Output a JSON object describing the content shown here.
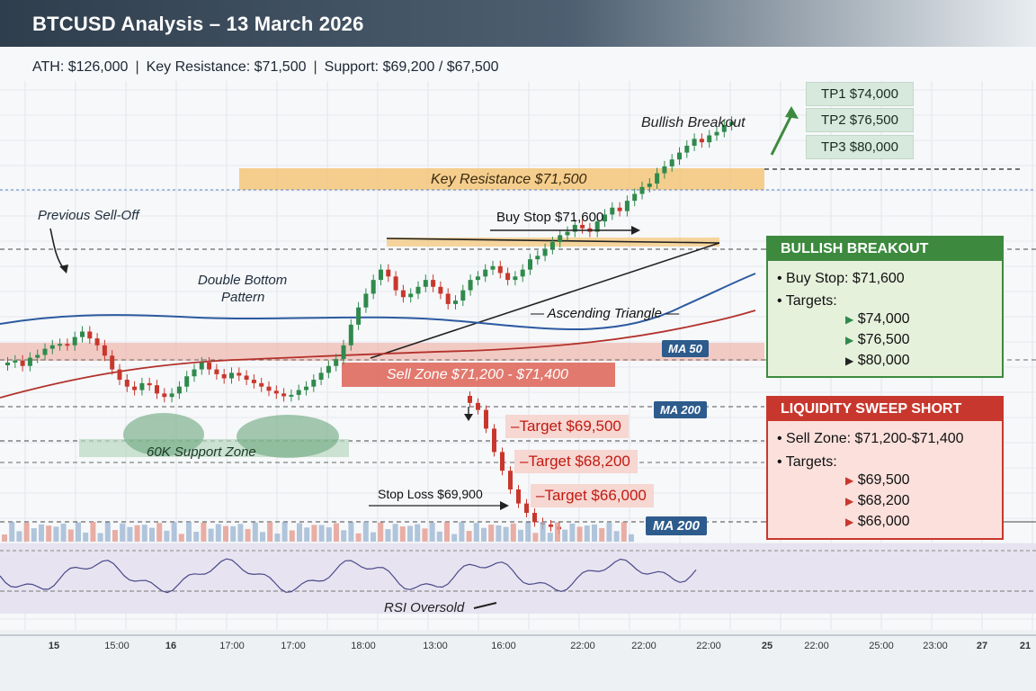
{
  "header": {
    "title": "BTCUSD Analysis – 13 March 2026",
    "ath": "ATH: $126,000",
    "key_resistance": "Key Resistance: $71,500",
    "support": "Support: $69,200 / $67,500"
  },
  "annotations": {
    "previous_selloff": "Previous Sell-Off",
    "double_bottom_l1": "Double Bottom",
    "double_bottom_l2": "Pattern",
    "support_zone": "60K Support Zone",
    "key_resistance_band": "Key Resistance $71,500",
    "buy_stop": "Buy Stop $71,600",
    "ascending_triangle": "— Ascending Triangle —",
    "bullish_breakout": "Bullish Breakout",
    "sell_zone": "Sell Zone $71,200 - $71,400",
    "stop_loss": "Stop Loss $69,900",
    "rsi_oversold": "RSI Oversold",
    "ma50": "MA 50",
    "ma200_a": "MA 200",
    "ma200_b": "MA 200"
  },
  "targets_short": [
    "–Target $69,500",
    "–Target $68,200",
    "–Target $66,000"
  ],
  "take_profits": [
    "TP1 $74,000",
    "TP2 $76,500",
    "TP3 $80,000"
  ],
  "bullish_panel": {
    "title": "BULLISH BREAKOUT",
    "buy_stop": "Buy Stop: $71,600",
    "targets_label": "Targets:",
    "targets": [
      "$74,000",
      "$76,500",
      "$80,000"
    ]
  },
  "short_panel": {
    "title": "LIQUIDITY SWEEP SHORT",
    "sell_zone": "Sell Zone: $71,200-$71,400",
    "targets_label": "Targets:",
    "targets": [
      "$69,500",
      "$68,200",
      "$66,000"
    ]
  },
  "x_ticks": [
    "15",
    "15:00",
    "16",
    "17:00",
    "17:00",
    "18:00",
    "13:00",
    "16:00",
    "22:00",
    "22:00",
    "22:00",
    "25",
    "22:00",
    "25:00",
    "23:00",
    "27",
    "21"
  ],
  "colors": {
    "up": "#2f8a4c",
    "down": "#c8372d",
    "ma50": "#2c5aa0",
    "ma200": "#b3312a",
    "resistance": "#f4c06a",
    "sell_zone": "#e06a5e",
    "support": "#6aa77c",
    "rsi": "#4a4a8a",
    "bull_panel": "#3d8a3e",
    "short_panel": "#c8372d"
  },
  "chart_data": {
    "type": "candlestick",
    "symbol": "BTCUSD",
    "levels": {
      "key_resistance": 71500,
      "buy_stop": 71600,
      "sell_zone": [
        71200,
        71400
      ],
      "stop_loss": 69900,
      "short_targets": [
        69500,
        68200,
        66000
      ],
      "long_targets": [
        74000,
        76500,
        80000
      ]
    },
    "closes": [
      69050,
      69080,
      69000,
      69120,
      69160,
      69250,
      69300,
      69320,
      69300,
      69420,
      69500,
      69400,
      69300,
      69150,
      68950,
      68800,
      68700,
      68650,
      68750,
      68720,
      68600,
      68550,
      68600,
      68700,
      68850,
      68950,
      69050,
      68950,
      68880,
      68820,
      68900,
      68860,
      68800,
      68750,
      68700,
      68640,
      68600,
      68560,
      68580,
      68650,
      68700,
      68800,
      68900,
      69000,
      69100,
      69300,
      69600,
      69850,
      70050,
      70250,
      70400,
      70300,
      70100,
      70000,
      70050,
      70150,
      70250,
      70150,
      70050,
      69900,
      69950,
      70100,
      70250,
      70300,
      70400,
      70450,
      70350,
      70250,
      70300,
      70400,
      70550,
      70600,
      70700,
      70800,
      70900,
      70950,
      71050,
      71000,
      70950,
      71100,
      71200,
      71300,
      71250,
      71400,
      71500,
      71600,
      71650,
      71800,
      71900,
      72000,
      72100,
      72200,
      72300,
      72250,
      72350,
      72400,
      72500,
      72550
    ],
    "short_scenario_closes": [
      71150,
      71000,
      70600,
      70100,
      69700,
      69300,
      69000,
      68800,
      68600,
      68550,
      68500,
      68450
    ]
  }
}
